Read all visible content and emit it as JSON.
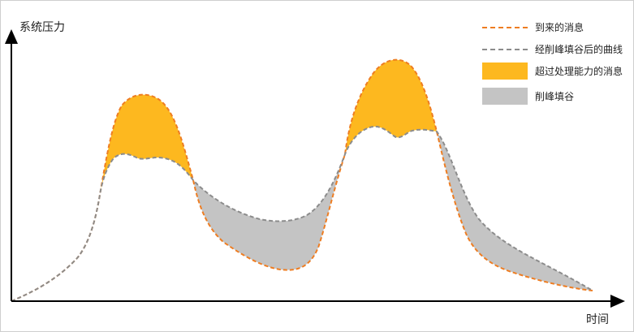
{
  "axes": {
    "y_label": "系统压力",
    "x_label": "时间"
  },
  "legend": {
    "items": [
      {
        "label": "到来的消息",
        "kind": "dashed-line",
        "color": "#EE7D22"
      },
      {
        "label": "经削峰填谷后的曲线",
        "kind": "dashed-line",
        "color": "#8C8C8C"
      },
      {
        "label": "超过处理能力的消息",
        "kind": "filled-box",
        "color": "#FDB81F"
      },
      {
        "label": "削峰填谷",
        "kind": "filled-box",
        "color": "#C4C4C4"
      }
    ]
  },
  "colors": {
    "incoming": "#EE7D22",
    "smoothed": "#8C8C8C",
    "excess": "#FDB81F",
    "shaved": "#C4C4C4",
    "axis": "#000000"
  }
}
